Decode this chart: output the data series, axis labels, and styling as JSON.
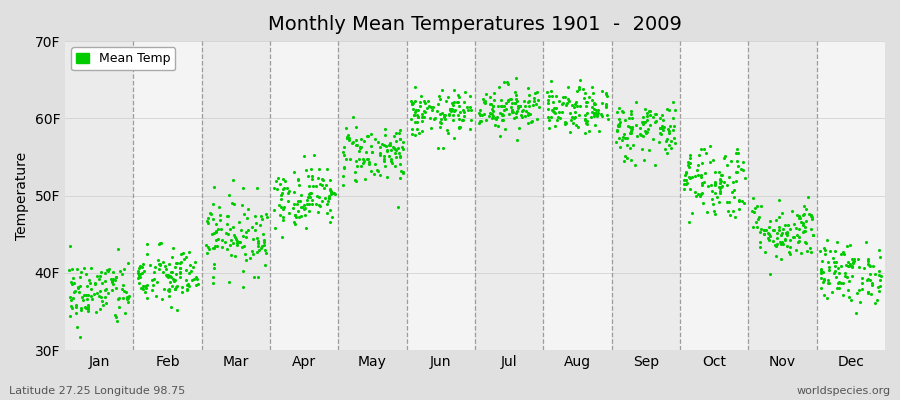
{
  "title": "Monthly Mean Temperatures 1901  -  2009",
  "ylabel": "Temperature",
  "xlabel_bottom_left": "Latitude 27.25 Longitude 98.75",
  "xlabel_bottom_right": "worldspecies.org",
  "ylim": [
    30,
    70
  ],
  "yticks": [
    30,
    40,
    50,
    60,
    70
  ],
  "ytick_labels": [
    "30F",
    "40F",
    "50F",
    "60F",
    "70F"
  ],
  "months": [
    "Jan",
    "Feb",
    "Mar",
    "Apr",
    "May",
    "Jun",
    "Jul",
    "Aug",
    "Sep",
    "Oct",
    "Nov",
    "Dec"
  ],
  "dot_color": "#00cc00",
  "background_color": "#e0e0e0",
  "plot_bg_color": "#f0f0f0",
  "legend_label": "Mean Temp",
  "monthly_means": [
    37.5,
    39.5,
    45.0,
    50.0,
    55.5,
    60.5,
    61.5,
    61.0,
    58.5,
    52.0,
    45.5,
    40.0
  ],
  "monthly_spreads": [
    2.2,
    2.0,
    2.5,
    2.0,
    2.0,
    1.5,
    1.5,
    1.5,
    2.0,
    2.5,
    2.0,
    2.0
  ],
  "n_years": 109,
  "dot_size": 5
}
